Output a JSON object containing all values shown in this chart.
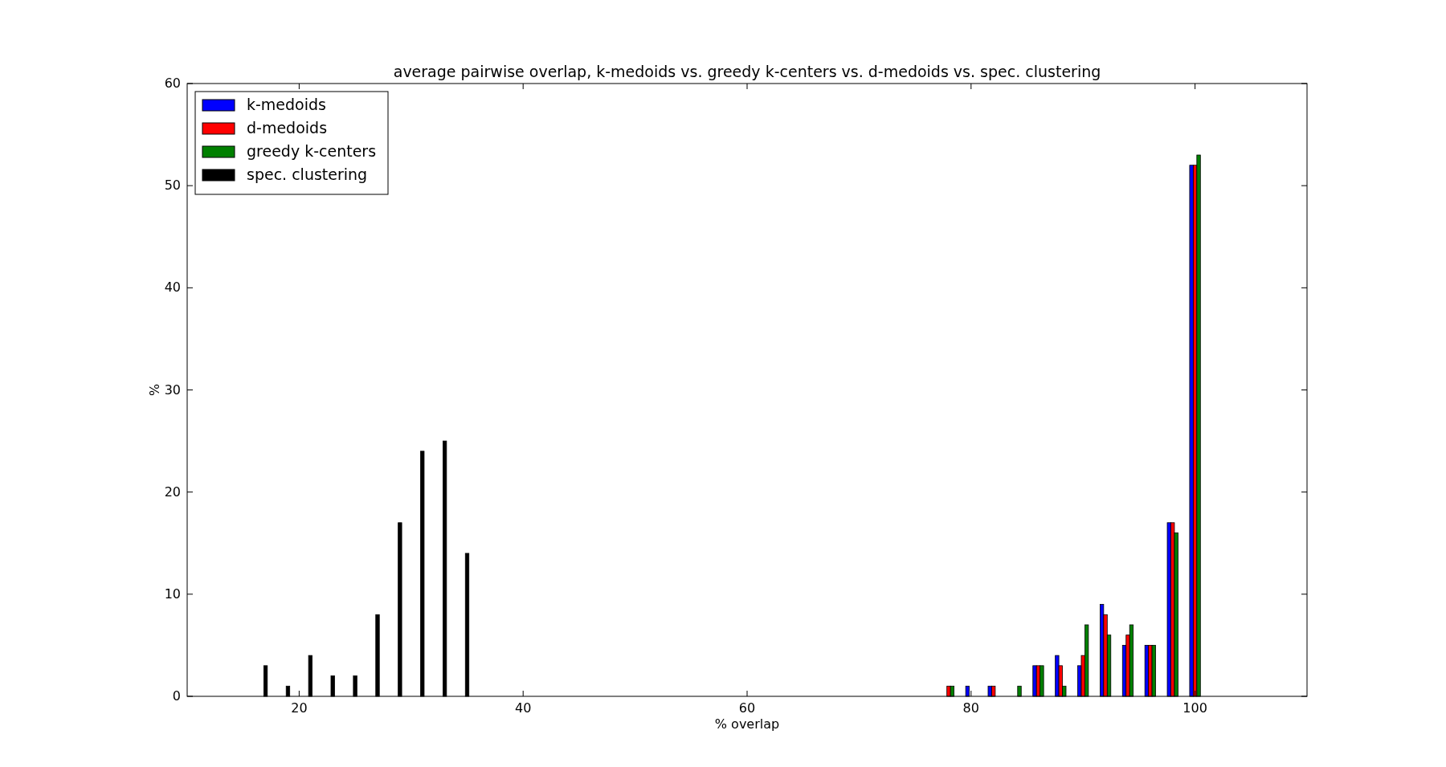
{
  "chart_data": {
    "type": "bar",
    "title": "average pairwise overlap, k-medoids vs. greedy k-centers vs. d-medoids vs. spec. clustering",
    "xlabel": "% overlap",
    "ylabel": "%",
    "xlim": [
      10,
      110
    ],
    "xticks": [
      20,
      40,
      60,
      80,
      100
    ],
    "ylim": [
      0,
      60
    ],
    "yticks": [
      0,
      10,
      20,
      30,
      40,
      50,
      60
    ],
    "legend": "top left",
    "grid": false,
    "series": [
      {
        "name": "k-medoids",
        "color": "#0000ff",
        "x": [
          78,
          80,
          82,
          84,
          86,
          88,
          90,
          92,
          94,
          96,
          98,
          100
        ],
        "values": [
          0,
          1,
          1,
          0,
          3,
          4,
          3,
          9,
          5,
          5,
          17,
          52
        ]
      },
      {
        "name": "d-medoids",
        "color": "#ff0000",
        "x": [
          78,
          80,
          82,
          84,
          86,
          88,
          90,
          92,
          94,
          96,
          98,
          100
        ],
        "values": [
          1,
          0,
          1,
          0,
          3,
          3,
          4,
          8,
          6,
          5,
          17,
          52
        ]
      },
      {
        "name": "greedy k-centers",
        "color": "#008000",
        "x": [
          78,
          80,
          82,
          84,
          86,
          88,
          90,
          92,
          94,
          96,
          98,
          100
        ],
        "values": [
          1,
          0,
          0,
          1,
          3,
          1,
          7,
          6,
          7,
          5,
          16,
          53
        ]
      },
      {
        "name": "spec. clustering",
        "color": "#000000",
        "x": [
          17,
          19,
          21,
          23,
          25,
          27,
          29,
          31,
          33,
          35
        ],
        "values": [
          3,
          1,
          4,
          2,
          2,
          8,
          17,
          24,
          25,
          14
        ]
      }
    ]
  }
}
